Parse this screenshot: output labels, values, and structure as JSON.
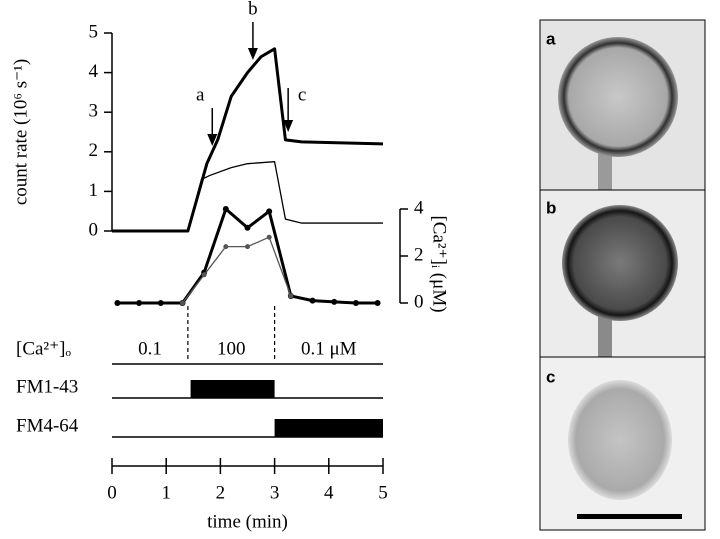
{
  "chart_data": [
    {
      "type": "line",
      "ylabel": "count rate (10⁶ s⁻¹)",
      "xlim": [
        0,
        5
      ],
      "ylim": [
        0,
        5
      ],
      "yticks": [
        0,
        1,
        2,
        3,
        4,
        5
      ],
      "series": [
        {
          "name": null,
          "color": "#000000",
          "width": 3,
          "x": [
            0,
            1.4,
            1.75,
            1.95,
            2.2,
            2.5,
            2.75,
            3.0,
            3.2,
            3.5,
            5
          ],
          "values": [
            0,
            0,
            1.7,
            2.3,
            3.4,
            4.0,
            4.4,
            4.6,
            2.3,
            2.25,
            2.2
          ]
        },
        {
          "name": null,
          "color": "#000000",
          "width": 1.3,
          "x": [
            0,
            1.4,
            1.65,
            1.8,
            2.2,
            2.5,
            3.0,
            3.2,
            3.5,
            5
          ],
          "values": [
            0,
            0,
            1.3,
            1.4,
            1.6,
            1.7,
            1.75,
            0.3,
            0.2,
            0.2
          ]
        }
      ],
      "annotations": [
        {
          "label": "a",
          "x": 1.85
        },
        {
          "label": "b",
          "x": 2.6
        },
        {
          "label": "c",
          "x": 3.25
        }
      ]
    },
    {
      "type": "line",
      "ylabel": "[Ca²⁺]ᵢ (μM)",
      "xlim": [
        0,
        5
      ],
      "ylim": [
        0,
        4
      ],
      "yticks": [
        0,
        2,
        4
      ],
      "markers": true,
      "series": [
        {
          "name": null,
          "color": "#000000",
          "width": 3,
          "x": [
            0.1,
            0.5,
            0.9,
            1.3,
            1.7,
            2.1,
            2.5,
            2.9,
            3.3,
            3.7,
            4.1,
            4.5,
            4.9
          ],
          "values": [
            0,
            0,
            0,
            0,
            1.3,
            4.0,
            3.2,
            3.9,
            0.3,
            0.1,
            0.05,
            0,
            0
          ]
        },
        {
          "name": null,
          "color": "#555555",
          "width": 1.3,
          "x": [
            1.3,
            1.7,
            2.1,
            2.5,
            2.9,
            3.3
          ],
          "values": [
            0,
            1.2,
            2.4,
            2.4,
            2.8,
            0.3
          ]
        }
      ]
    },
    {
      "type": "timeline",
      "xlabel": "time (min)",
      "xlim": [
        0,
        5
      ],
      "xticks": [
        0,
        1,
        2,
        3,
        4,
        5
      ],
      "bath": {
        "label": "[Ca²⁺]ₒ",
        "segments": [
          {
            "label": "0.1",
            "start": 0,
            "end": 1.4
          },
          {
            "label": "100",
            "start": 1.4,
            "end": 3.0
          },
          {
            "label": "0.1 μM",
            "start": 3.0,
            "end": 5
          }
        ]
      },
      "dyes": [
        {
          "label": "FM1-43",
          "start": 1.45,
          "end": 3.0
        },
        {
          "label": "FM4-64",
          "start": 3.0,
          "end": 5
        }
      ]
    }
  ],
  "images": [
    {
      "label": "a"
    },
    {
      "label": "b"
    },
    {
      "label": "c"
    }
  ]
}
